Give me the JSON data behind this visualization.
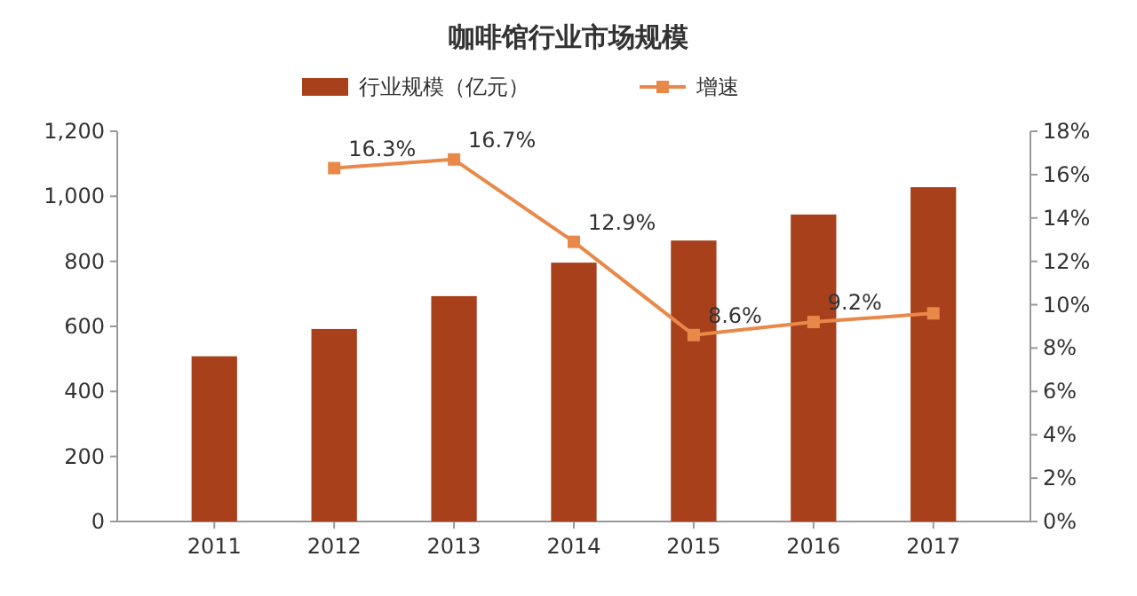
{
  "chart_data": {
    "type": "bar",
    "title": "咖啡馆行业市场规模",
    "categories": [
      "2011",
      "2012",
      "2013",
      "2014",
      "2015",
      "2016",
      "2017"
    ],
    "series": [
      {
        "name": "行业规模（亿元）",
        "color": "#a8401c",
        "values": [
          508,
          592,
          693,
          796,
          864,
          944,
          1028
        ]
      },
      {
        "name": "增速",
        "type": "line",
        "axis": "y2",
        "color": "#e8894a",
        "marker": "square",
        "values": [
          null,
          16.3,
          16.7,
          12.9,
          8.6,
          9.2,
          9.6
        ],
        "value_labels": [
          null,
          "16.3%",
          "16.7%",
          "12.9%",
          "8.6%",
          "9.2%",
          null
        ]
      }
    ],
    "ylim": [
      0,
      1200
    ],
    "yticks": [
      0,
      200,
      400,
      600,
      800,
      {
        "value": 1000,
        "label": "1,000"
      },
      {
        "value": 1200,
        "label": "1,200"
      }
    ],
    "y2lim": [
      0,
      18
    ],
    "y2ticks": [
      {
        "value": 0,
        "label": "0%"
      },
      {
        "value": 2,
        "label": "2%"
      },
      {
        "value": 4,
        "label": "4%"
      },
      {
        "value": 6,
        "label": "6%"
      },
      {
        "value": 8,
        "label": "8%"
      },
      {
        "value": 10,
        "label": "10%"
      },
      {
        "value": 12,
        "label": "12%"
      },
      {
        "value": 14,
        "label": "14%"
      },
      {
        "value": 16,
        "label": "16%"
      },
      {
        "value": 18,
        "label": "18%"
      }
    ],
    "legend": "top"
  }
}
